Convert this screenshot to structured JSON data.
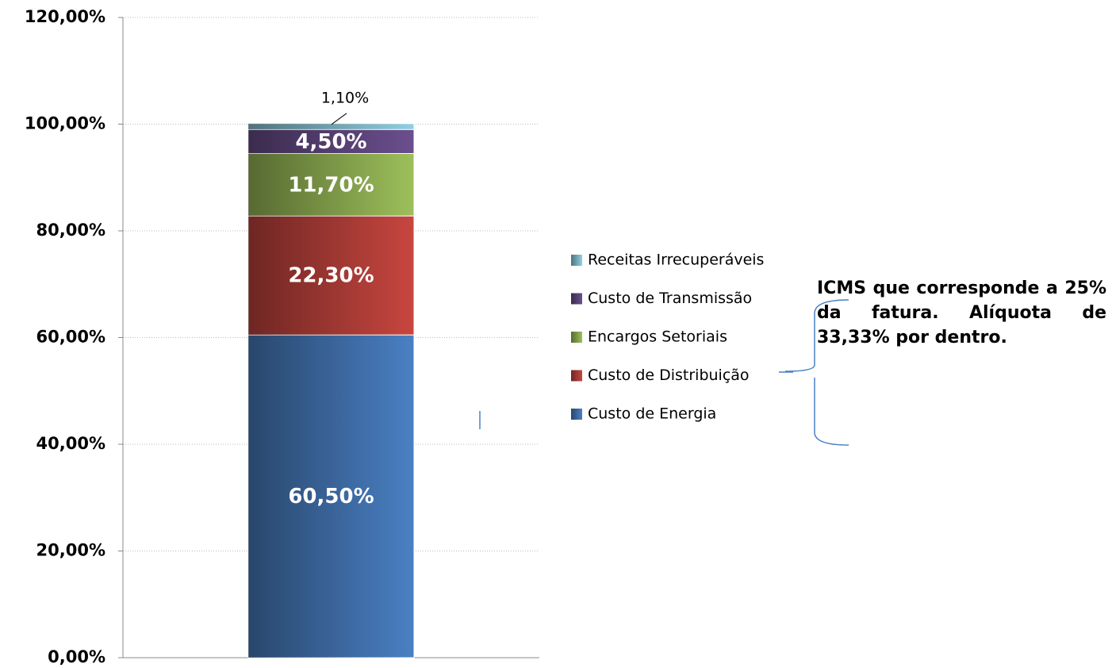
{
  "chart_data": {
    "type": "stacked_bar",
    "categories": [
      null
    ],
    "series": [
      {
        "name": "Custo de Energia",
        "color": "#4a80c4",
        "values": [
          60.5
        ],
        "value_labels": [
          "60,50%"
        ]
      },
      {
        "name": "Custo de Distribuição",
        "color": "#c8463f",
        "values": [
          22.3
        ],
        "value_labels": [
          "22,30%"
        ]
      },
      {
        "name": "Encargos Setoriais",
        "color": "#9dc05a",
        "values": [
          11.7
        ],
        "value_labels": [
          "11,70%"
        ]
      },
      {
        "name": "Custo de Transmissão",
        "color": "#6b4f8e",
        "values": [
          4.5
        ],
        "value_labels": [
          "4,50%"
        ]
      },
      {
        "name": "Receitas Irrecuperáveis",
        "color": "#8fd0e2",
        "values": [
          1.1
        ],
        "value_labels": [
          "1,10%"
        ]
      }
    ],
    "ylim": [
      0,
      120
    ],
    "yticks": [
      {
        "value": 0,
        "label": "0,00%"
      },
      {
        "value": 20,
        "label": "20,00%"
      },
      {
        "value": 40,
        "label": "40,00%"
      },
      {
        "value": 60,
        "label": "60,00%"
      },
      {
        "value": 80,
        "label": "80,00%"
      },
      {
        "value": 100,
        "label": "100,00%"
      },
      {
        "value": 120,
        "label": "120,00%"
      }
    ],
    "grid": true,
    "legend": "right",
    "annotation": "ICMS que corresponde a 25% da fatura. Alíquota de 33,33% por dentro."
  }
}
